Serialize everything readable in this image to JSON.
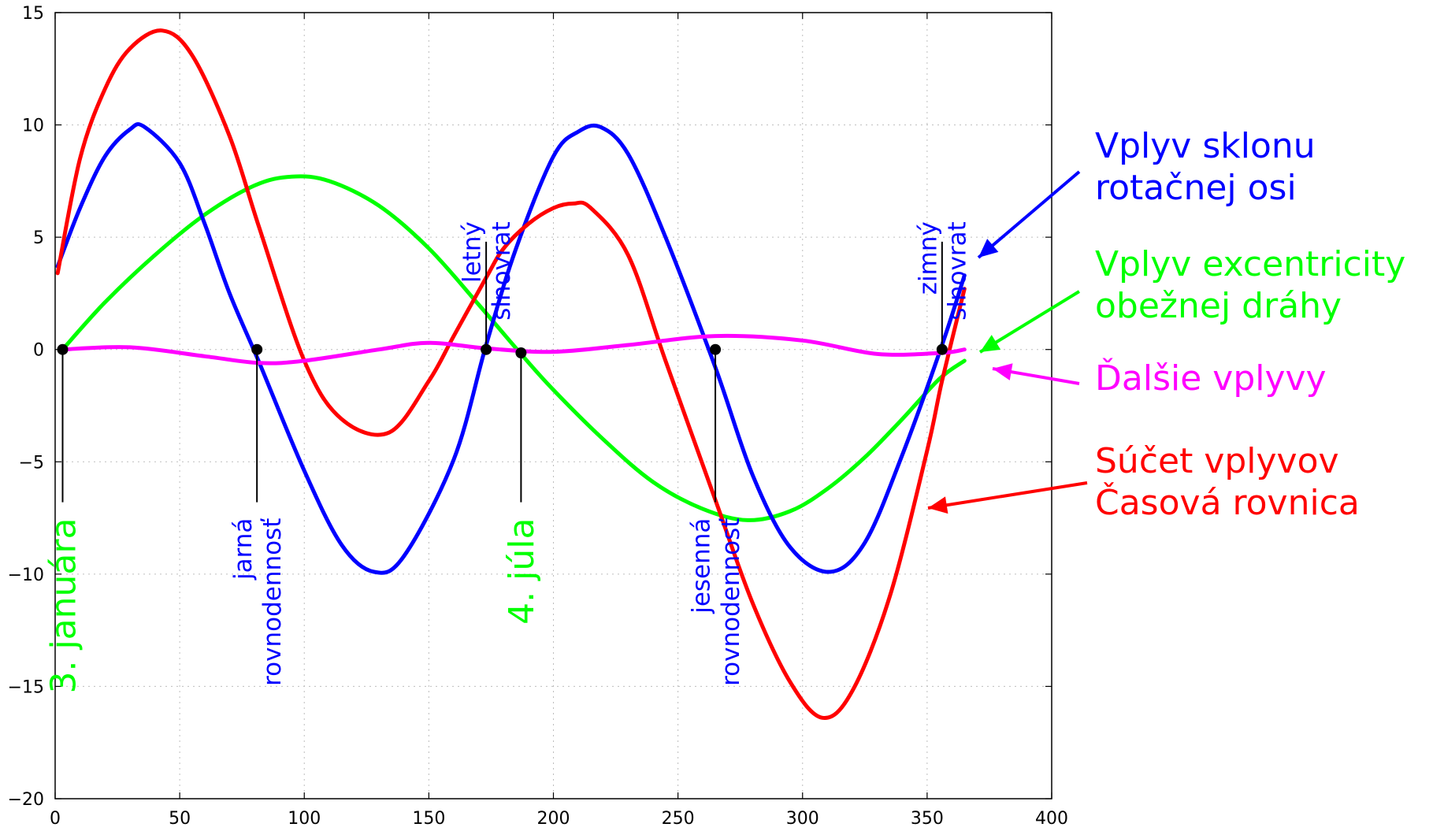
{
  "colors": {
    "tilt": "#0000ff",
    "ecc": "#00ff00",
    "other": "#ff00ff",
    "sum": "#ff0000",
    "marker": "#000000"
  },
  "chart_data": {
    "type": "line",
    "title": "",
    "xlabel": "",
    "ylabel": "",
    "xlim": [
      0,
      400
    ],
    "ylim": [
      -20,
      15
    ],
    "xticks": [
      0,
      50,
      100,
      150,
      200,
      250,
      300,
      350,
      400
    ],
    "yticks": [
      -20,
      -15,
      -10,
      -5,
      0,
      5,
      10,
      15
    ],
    "grid": true,
    "series": [
      {
        "key": "tilt",
        "name": "Vplyv sklonu rotačnej osi",
        "x": [
          1,
          10,
          20,
          30,
          36,
          50,
          60,
          70,
          82,
          100,
          115,
          128,
          140,
          160,
          173,
          185,
          200,
          210,
          219,
          230,
          245,
          265,
          280,
          295,
          311,
          325,
          340,
          356,
          365
        ],
        "y": [
          3.7,
          6.3,
          8.6,
          9.8,
          9.9,
          8.3,
          5.6,
          2.5,
          -0.6,
          -5.4,
          -8.7,
          -9.9,
          -9.2,
          -4.9,
          0.2,
          4.5,
          8.6,
          9.7,
          9.9,
          8.7,
          5.0,
          -0.8,
          -5.6,
          -8.8,
          -9.9,
          -8.6,
          -4.7,
          0.2,
          3.3
        ]
      },
      {
        "key": "ecc",
        "name": "Vplyv excentricity obežnej dráhy",
        "x": [
          3,
          20,
          40,
          60,
          80,
          95,
          110,
          130,
          150,
          170,
          187,
          200,
          220,
          240,
          260,
          278,
          295,
          310,
          325,
          340,
          355,
          365
        ],
        "y": [
          0.0,
          2.1,
          4.2,
          6.0,
          7.3,
          7.7,
          7.5,
          6.4,
          4.5,
          2.0,
          -0.2,
          -1.8,
          -4.0,
          -5.9,
          -7.1,
          -7.6,
          -7.2,
          -6.2,
          -4.8,
          -3.1,
          -1.3,
          -0.5
        ]
      },
      {
        "key": "other",
        "name": "Ďalšie vplyvy",
        "x": [
          3,
          30,
          60,
          82,
          100,
          130,
          150,
          173,
          200,
          230,
          265,
          300,
          330,
          356,
          365
        ],
        "y": [
          0.0,
          0.1,
          -0.3,
          -0.6,
          -0.5,
          0.0,
          0.3,
          0.05,
          -0.1,
          0.2,
          0.6,
          0.4,
          -0.2,
          -0.15,
          0.0
        ]
      },
      {
        "key": "sum",
        "name": "Súčet vplyvov Časová rovnica",
        "x": [
          1,
          10,
          20,
          30,
          43,
          55,
          70,
          82,
          100,
          115,
          134,
          150,
          160,
          173,
          180,
          190,
          200,
          208,
          215,
          230,
          245,
          265,
          280,
          295,
          308,
          320,
          335,
          350,
          356,
          365
        ],
        "y": [
          3.4,
          8.5,
          11.6,
          13.4,
          14.2,
          13.1,
          9.5,
          5.4,
          -0.5,
          -3.1,
          -3.7,
          -1.4,
          0.6,
          3.2,
          4.5,
          5.6,
          6.3,
          6.5,
          6.3,
          4.2,
          -0.5,
          -6.7,
          -11.3,
          -14.8,
          -16.4,
          -15.2,
          -11.0,
          -4.5,
          -1.4,
          2.7
        ]
      }
    ],
    "markers": [
      {
        "x": 3,
        "y": 0.0,
        "line_to_y": -6.8
      },
      {
        "x": 81,
        "y": 0.0,
        "line_to_y": -6.8
      },
      {
        "x": 173,
        "y": 0.0,
        "line_to_y": 4.8
      },
      {
        "x": 187,
        "y": -0.15,
        "line_to_y": -6.8
      },
      {
        "x": 265,
        "y": 0.0,
        "line_to_y": -6.8
      },
      {
        "x": 356,
        "y": 0.0,
        "line_to_y": 4.8
      }
    ],
    "annotations": [
      {
        "lines": [
          "3. januára"
        ],
        "color": "ecc",
        "x": 3,
        "y": -7.5,
        "rotate": -90,
        "size": 44
      },
      {
        "lines": [
          "jarná",
          "rovnodennosť"
        ],
        "color": "tilt",
        "x": 81,
        "y": -7.5,
        "rotate": -90,
        "size": 31
      },
      {
        "lines": [
          "letný",
          "slnovrat"
        ],
        "color": "tilt",
        "x": 173,
        "y": 5.7,
        "rotate": -90,
        "size": 31
      },
      {
        "lines": [
          "4. júla"
        ],
        "color": "ecc",
        "x": 187,
        "y": -7.5,
        "rotate": -90,
        "size": 44
      },
      {
        "lines": [
          "jesenná",
          "rovnodennosť"
        ],
        "color": "tilt",
        "x": 265,
        "y": -7.5,
        "rotate": -90,
        "size": 31
      },
      {
        "lines": [
          "zimný",
          "slnovrat"
        ],
        "color": "tilt",
        "x": 356,
        "y": 5.7,
        "rotate": -90,
        "size": 31
      }
    ],
    "legend": [
      {
        "lines": [
          "Vplyv sklonu",
          "rotačnej osi"
        ],
        "color": "tilt"
      },
      {
        "lines": [
          "Vplyv excentricity",
          "obežnej dráhy"
        ],
        "color": "ecc"
      },
      {
        "lines": [
          "Ďalšie vplyvy"
        ],
        "color": "other"
      },
      {
        "lines": [
          "Súčet vplyvov",
          "Časová rovnica"
        ],
        "color": "sum"
      }
    ]
  }
}
